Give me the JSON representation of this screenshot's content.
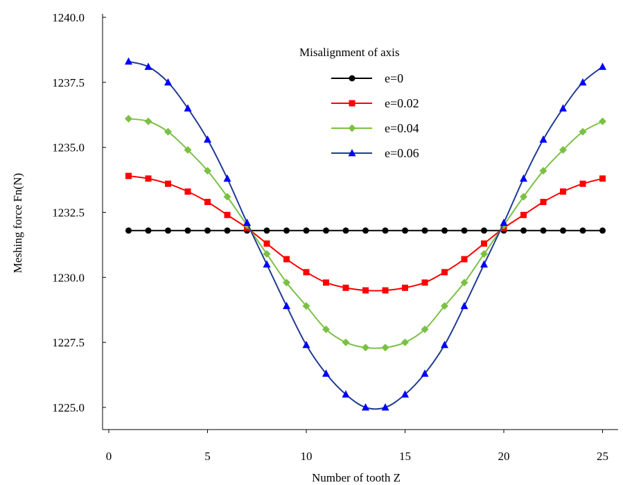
{
  "chart_data": {
    "type": "line",
    "title": "",
    "xlabel": "Number of tooth Z",
    "ylabel": "Meshing force Fn(N)",
    "xlim": [
      0,
      25.5
    ],
    "ylim": [
      1225.0,
      1240.0
    ],
    "x_ticks": [
      "0",
      "5",
      "10",
      "15",
      "20",
      "25"
    ],
    "y_ticks": [
      "1225.0",
      "1227.5",
      "1230.0",
      "1232.5",
      "1235.0",
      "1237.5",
      "1240.0"
    ],
    "legend_title": "Misalignment of axis",
    "legend_position": "top-center",
    "x": [
      1,
      2,
      3,
      4,
      5,
      6,
      7,
      8,
      9,
      10,
      11,
      12,
      13,
      14,
      15,
      16,
      17,
      18,
      19,
      20,
      21,
      22,
      23,
      24,
      25
    ],
    "series": [
      {
        "name": "e=0",
        "color": "#000000",
        "marker": "circle",
        "values": [
          1231.8,
          1231.8,
          1231.8,
          1231.8,
          1231.8,
          1231.8,
          1231.8,
          1231.8,
          1231.8,
          1231.8,
          1231.8,
          1231.8,
          1231.8,
          1231.8,
          1231.8,
          1231.8,
          1231.8,
          1231.8,
          1231.8,
          1231.8,
          1231.8,
          1231.8,
          1231.8,
          1231.8,
          1231.8
        ]
      },
      {
        "name": "e=0.02",
        "color": "#ff0000",
        "marker": "square",
        "values": [
          1233.9,
          1233.8,
          1233.6,
          1233.3,
          1232.9,
          1232.4,
          1231.9,
          1231.3,
          1230.7,
          1230.2,
          1229.8,
          1229.6,
          1229.5,
          1229.5,
          1229.6,
          1229.8,
          1230.2,
          1230.7,
          1231.3,
          1231.9,
          1232.4,
          1232.9,
          1233.3,
          1233.6,
          1233.8
        ]
      },
      {
        "name": "e=0.04",
        "color": "#7ac143",
        "marker": "diamond",
        "values": [
          1236.1,
          1236.0,
          1235.6,
          1234.9,
          1234.1,
          1233.1,
          1232.0,
          1230.9,
          1229.8,
          1228.9,
          1228.0,
          1227.5,
          1227.3,
          1227.3,
          1227.5,
          1228.0,
          1228.9,
          1229.8,
          1230.9,
          1232.0,
          1233.1,
          1234.1,
          1234.9,
          1235.6,
          1236.0
        ]
      },
      {
        "name": "e=0.06",
        "color": "#0000ff",
        "line_color": "#1f3a93",
        "marker": "triangle",
        "values": [
          1238.3,
          1238.1,
          1237.5,
          1236.5,
          1235.3,
          1233.8,
          1232.1,
          1230.5,
          1228.9,
          1227.4,
          1226.3,
          1225.5,
          1225.0,
          1225.0,
          1225.5,
          1226.3,
          1227.4,
          1228.9,
          1230.5,
          1232.1,
          1233.8,
          1235.3,
          1236.5,
          1237.5,
          1238.1
        ]
      }
    ]
  }
}
